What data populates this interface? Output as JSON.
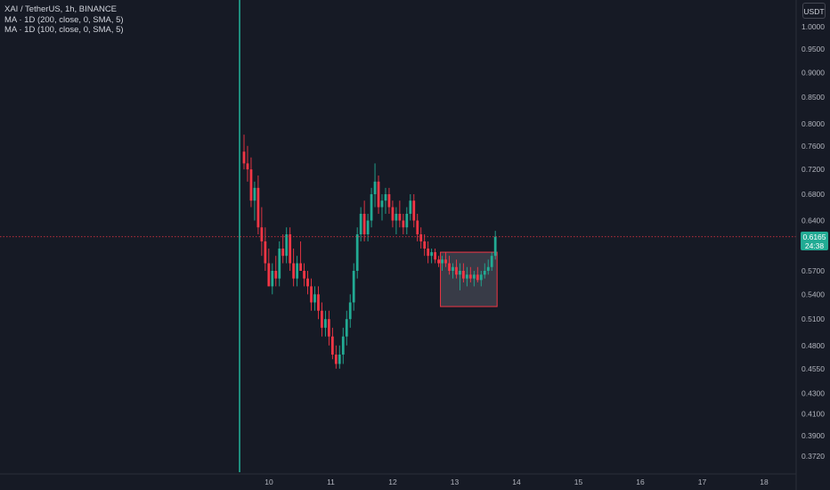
{
  "legend": {
    "symbol_line": "XAI / TetherUS, 1h, BINANCE",
    "ma1": "MA · 1D (200, close, 0, SMA, 5)",
    "ma2": "MA · 1D (100, close, 0, SMA, 5)"
  },
  "currency_label": "USDT",
  "current_price": {
    "price": "0.6165",
    "countdown": "24:38",
    "value": 0.6165
  },
  "colors": {
    "background": "#161a25",
    "up": "#22ab94",
    "down": "#f23645",
    "price_line": "#f23645",
    "text": "#b2b5be",
    "rectangle_stroke": "#f23645"
  },
  "chart_data": {
    "type": "candlestick",
    "y_scale": "log",
    "y_tick_labels": [
      "1.0000",
      "0.9500",
      "0.9000",
      "0.8500",
      "0.8000",
      "0.7600",
      "0.7200",
      "0.6800",
      "0.6400",
      "0.5700",
      "0.5400",
      "0.5100",
      "0.4800",
      "0.4550",
      "0.4300",
      "0.4100",
      "0.3900",
      "0.3720"
    ],
    "x_tick_labels": [
      "10",
      "11",
      "12",
      "13",
      "14",
      "15",
      "16",
      "17",
      "18"
    ],
    "grid": false,
    "listing_candle": {
      "open": 0.372,
      "high": 1.23,
      "low": 0.372,
      "close": 0.75
    },
    "candles": [
      [
        0.75,
        0.78,
        0.72,
        0.73
      ],
      [
        0.73,
        0.76,
        0.7,
        0.72
      ],
      [
        0.72,
        0.74,
        0.66,
        0.67
      ],
      [
        0.67,
        0.7,
        0.64,
        0.69
      ],
      [
        0.69,
        0.71,
        0.62,
        0.63
      ],
      [
        0.63,
        0.66,
        0.59,
        0.61
      ],
      [
        0.61,
        0.63,
        0.57,
        0.58
      ],
      [
        0.58,
        0.6,
        0.55,
        0.55
      ],
      [
        0.55,
        0.58,
        0.54,
        0.57
      ],
      [
        0.57,
        0.59,
        0.55,
        0.56
      ],
      [
        0.56,
        0.61,
        0.55,
        0.6
      ],
      [
        0.6,
        0.62,
        0.58,
        0.59
      ],
      [
        0.59,
        0.63,
        0.58,
        0.62
      ],
      [
        0.62,
        0.63,
        0.57,
        0.58
      ],
      [
        0.58,
        0.6,
        0.55,
        0.56
      ],
      [
        0.56,
        0.59,
        0.55,
        0.58
      ],
      [
        0.58,
        0.61,
        0.57,
        0.57
      ],
      [
        0.57,
        0.58,
        0.55,
        0.56
      ],
      [
        0.56,
        0.57,
        0.54,
        0.55
      ],
      [
        0.55,
        0.56,
        0.52,
        0.53
      ],
      [
        0.53,
        0.55,
        0.52,
        0.54
      ],
      [
        0.54,
        0.55,
        0.51,
        0.52
      ],
      [
        0.52,
        0.53,
        0.49,
        0.5
      ],
      [
        0.5,
        0.52,
        0.49,
        0.51
      ],
      [
        0.51,
        0.52,
        0.48,
        0.49
      ],
      [
        0.49,
        0.5,
        0.465,
        0.47
      ],
      [
        0.47,
        0.48,
        0.455,
        0.46
      ],
      [
        0.46,
        0.48,
        0.455,
        0.47
      ],
      [
        0.47,
        0.5,
        0.46,
        0.49
      ],
      [
        0.49,
        0.52,
        0.48,
        0.51
      ],
      [
        0.51,
        0.54,
        0.5,
        0.53
      ],
      [
        0.53,
        0.58,
        0.52,
        0.57
      ],
      [
        0.57,
        0.63,
        0.56,
        0.62
      ],
      [
        0.62,
        0.66,
        0.61,
        0.65
      ],
      [
        0.65,
        0.67,
        0.61,
        0.62
      ],
      [
        0.62,
        0.65,
        0.61,
        0.64
      ],
      [
        0.64,
        0.69,
        0.63,
        0.68
      ],
      [
        0.68,
        0.73,
        0.66,
        0.7
      ],
      [
        0.7,
        0.71,
        0.65,
        0.66
      ],
      [
        0.66,
        0.68,
        0.64,
        0.67
      ],
      [
        0.67,
        0.69,
        0.65,
        0.68
      ],
      [
        0.68,
        0.69,
        0.65,
        0.66
      ],
      [
        0.66,
        0.67,
        0.63,
        0.64
      ],
      [
        0.64,
        0.66,
        0.62,
        0.65
      ],
      [
        0.65,
        0.67,
        0.63,
        0.64
      ],
      [
        0.64,
        0.65,
        0.62,
        0.63
      ],
      [
        0.63,
        0.66,
        0.62,
        0.65
      ],
      [
        0.65,
        0.68,
        0.64,
        0.67
      ],
      [
        0.67,
        0.68,
        0.63,
        0.64
      ],
      [
        0.64,
        0.65,
        0.61,
        0.62
      ],
      [
        0.62,
        0.63,
        0.6,
        0.61
      ],
      [
        0.61,
        0.62,
        0.59,
        0.6
      ],
      [
        0.6,
        0.61,
        0.58,
        0.59
      ],
      [
        0.59,
        0.6,
        0.58,
        0.595
      ],
      [
        0.595,
        0.6,
        0.58,
        0.585
      ],
      [
        0.585,
        0.59,
        0.575,
        0.58
      ],
      [
        0.58,
        0.59,
        0.57,
        0.585
      ],
      [
        0.585,
        0.595,
        0.575,
        0.58
      ],
      [
        0.58,
        0.59,
        0.565,
        0.57
      ],
      [
        0.57,
        0.58,
        0.56,
        0.575
      ],
      [
        0.575,
        0.585,
        0.56,
        0.565
      ],
      [
        0.565,
        0.58,
        0.545,
        0.57
      ],
      [
        0.57,
        0.58,
        0.555,
        0.56
      ],
      [
        0.56,
        0.575,
        0.55,
        0.565
      ],
      [
        0.565,
        0.575,
        0.555,
        0.56
      ],
      [
        0.56,
        0.57,
        0.55,
        0.565
      ],
      [
        0.565,
        0.575,
        0.555,
        0.558
      ],
      [
        0.558,
        0.57,
        0.55,
        0.565
      ],
      [
        0.565,
        0.58,
        0.56,
        0.57
      ],
      [
        0.57,
        0.585,
        0.565,
        0.575
      ],
      [
        0.575,
        0.595,
        0.57,
        0.59
      ],
      [
        0.59,
        0.625,
        0.585,
        0.6165
      ]
    ],
    "rectangle": {
      "from_candle": 56,
      "to_candle": 71,
      "high": 0.595,
      "low": 0.525
    }
  }
}
